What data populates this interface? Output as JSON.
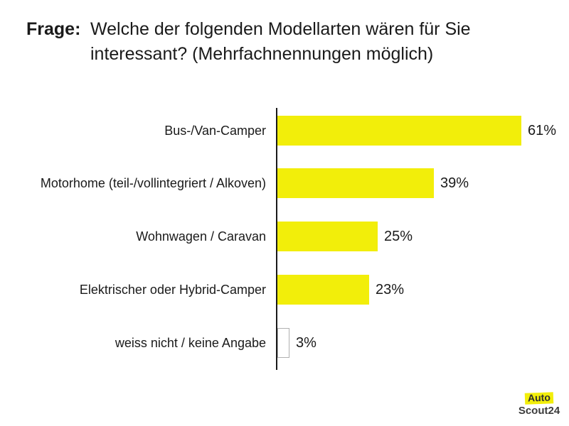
{
  "title": {
    "prefix": "Frage:",
    "line1": "Welche der folgenden Modellarten wären für Sie",
    "line2": "interessant? (Mehrfachnennungen möglich)"
  },
  "chart_data": {
    "type": "bar",
    "orientation": "horizontal",
    "categories": [
      "Bus-/Van-Camper",
      "Motorhome (teil-/vollintegriert / Alkoven)",
      "Wohnwagen / Caravan",
      "Elektrischer oder Hybrid-Camper",
      "weiss nicht / keine Angabe"
    ],
    "values": [
      61,
      39,
      25,
      23,
      3
    ],
    "value_labels": [
      "61%",
      "39%",
      "25%",
      "23%",
      "3%"
    ],
    "unit": "%",
    "xlim": [
      0,
      71
    ],
    "grid": false,
    "value_label_position": "outside-end",
    "bar_color": "#F2EE0A",
    "bar_styles": [
      "filled",
      "filled",
      "filled",
      "filled",
      "outline"
    ],
    "outline_border_color": "#B0B0B0",
    "axis_color": "#1A1A1A"
  },
  "logo": {
    "auto": "Auto",
    "scout24": "Scout24",
    "highlight_color": "#F2EE0A",
    "text_color": "#3C3C3C"
  },
  "colors": {
    "background": "#FFFFFF",
    "text": "#1A1A1A"
  }
}
